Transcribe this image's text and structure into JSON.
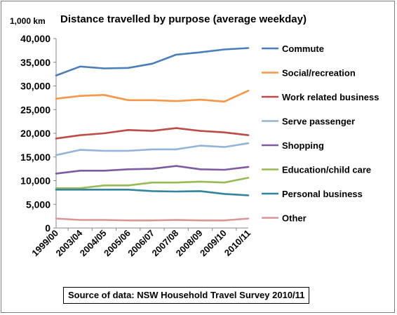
{
  "chart_data": {
    "type": "line",
    "title": "Distance travelled  by purpose (average  weekday)",
    "y_unit_label": "1,000 km",
    "categories": [
      "1999/00",
      "2003/04",
      "2004/05",
      "2005/06",
      "2006/07",
      "2007/08",
      "2008/09",
      "2009/10",
      "2010/11"
    ],
    "ylim": [
      0,
      40000
    ],
    "yticks": [
      0,
      5000,
      10000,
      15000,
      20000,
      25000,
      30000,
      35000,
      40000
    ],
    "ytick_labels": [
      "0",
      "5,000",
      "10,000",
      "15,000",
      "20,000",
      "25,000",
      "30,000",
      "35,000",
      "40,000"
    ],
    "grid": false,
    "legend_position": "right",
    "series": [
      {
        "name": "Commute",
        "color": "#4a7ebb",
        "values": [
          32200,
          34100,
          33700,
          33800,
          34700,
          36600,
          37100,
          37700,
          38000
        ]
      },
      {
        "name": "Social/recreation",
        "color": "#f79646",
        "values": [
          27300,
          27900,
          28100,
          27000,
          27000,
          26800,
          27100,
          26700,
          29000
        ]
      },
      {
        "name": "Work related business",
        "color": "#be4b48",
        "values": [
          18900,
          19600,
          20000,
          20700,
          20500,
          21100,
          20500,
          20200,
          19600
        ]
      },
      {
        "name": "Serve passenger",
        "color": "#93b3d7",
        "values": [
          15400,
          16500,
          16300,
          16300,
          16600,
          16600,
          17400,
          17100,
          17900
        ]
      },
      {
        "name": "Shopping",
        "color": "#7e5aa2",
        "values": [
          11500,
          12100,
          12100,
          12400,
          12500,
          13100,
          12400,
          12300,
          12900
        ]
      },
      {
        "name": "Education/child care",
        "color": "#98b954",
        "values": [
          8400,
          8400,
          9000,
          9000,
          9600,
          9600,
          9800,
          9600,
          10600
        ]
      },
      {
        "name": "Personal business",
        "color": "#31859c",
        "values": [
          8100,
          8100,
          8100,
          8100,
          7800,
          7700,
          7800,
          7200,
          6900
        ]
      },
      {
        "name": "Other",
        "color": "#d99694",
        "values": [
          2000,
          1700,
          1700,
          1600,
          1600,
          1700,
          1600,
          1600,
          2000
        ]
      }
    ]
  },
  "source_note": "Source of data: NSW Household  Travel Survey 2010/11"
}
